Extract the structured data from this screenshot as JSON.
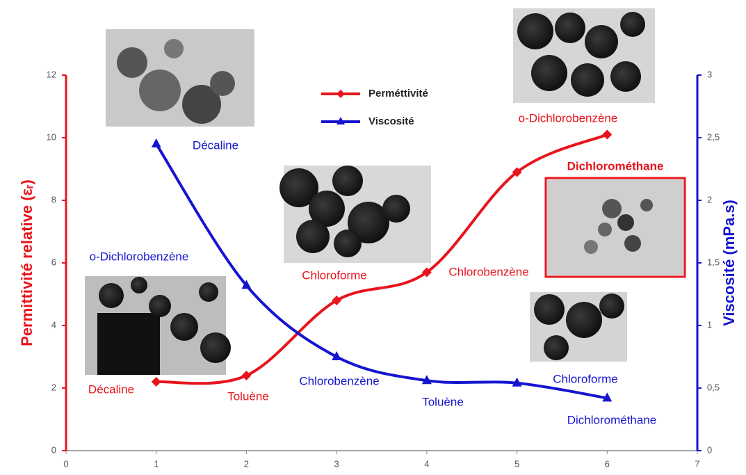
{
  "chart_data": {
    "type": "line",
    "y_label": "Permittivité relative (εᵣ)",
    "y2_label": "Viscosité (mPa.s)",
    "x": [
      1,
      2,
      3,
      4,
      5,
      6
    ],
    "xlim": [
      0,
      7
    ],
    "xticks": [
      0,
      1,
      2,
      3,
      4,
      5,
      6,
      7
    ],
    "ylim": [
      0,
      12
    ],
    "yticks": [
      0,
      2,
      4,
      6,
      8,
      10,
      12
    ],
    "y2lim": [
      0,
      3
    ],
    "y2ticks": [
      0,
      {
        "value": 0.5,
        "label": "0,5"
      },
      1,
      {
        "value": 1.5,
        "label": "1,5"
      },
      2,
      {
        "value": 2.5,
        "label": "2,5"
      },
      3
    ],
    "series": [
      {
        "name": "Perméttivité",
        "color": "#e8141c",
        "marker": "diamond",
        "values": [
          2.2,
          2.4,
          4.8,
          5.7,
          8.9,
          10.1
        ],
        "point_labels": [
          "Décaline",
          "Toluène",
          "Chloroforme",
          "Chlorobenzène",
          "Dichlorométhane",
          "o-Dichlorobenzène"
        ]
      },
      {
        "name": "Viscosité",
        "color": "#1515d0",
        "marker": "triangle",
        "axis": "y2",
        "values": [
          2.45,
          1.32,
          0.75,
          0.56,
          0.54,
          0.42
        ],
        "point_labels": [
          "Décaline",
          "o-Dichlorobenzène",
          "Chlorobenzène",
          "Toluène",
          "Chloroforme",
          "Dichlorométhane"
        ]
      }
    ]
  }
}
